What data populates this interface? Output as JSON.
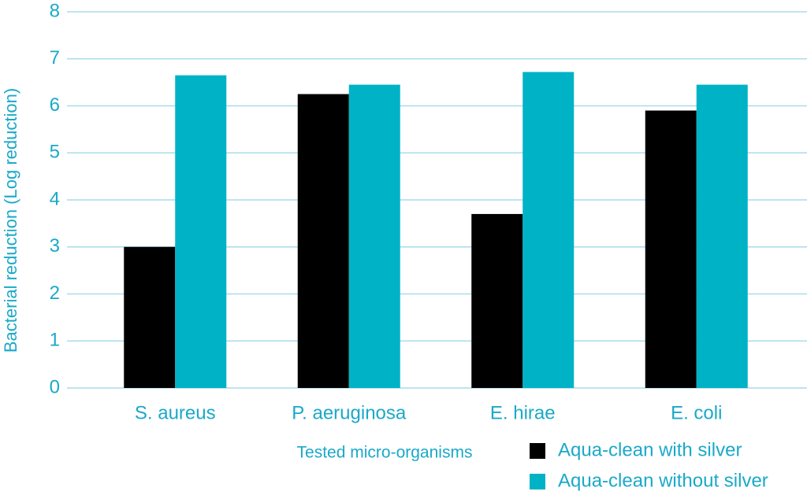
{
  "chart_data": {
    "type": "bar",
    "x_label": "Tested micro-organisms",
    "y_label": "Bacterial reduction (Log reduction)",
    "categories": [
      "S. aureus",
      "P. aeruginosa",
      "E. hirae",
      "E. coli"
    ],
    "series": [
      {
        "name": "Aqua-clean with silver",
        "color": "#000000",
        "values": [
          3.0,
          6.25,
          3.7,
          5.9
        ]
      },
      {
        "name": "Aqua-clean without silver",
        "color": "#00b2c6",
        "values": [
          6.65,
          6.45,
          6.72,
          6.45
        ]
      }
    ],
    "ylim": [
      0,
      8
    ],
    "yticks": [
      0,
      1,
      2,
      3,
      4,
      5,
      6,
      7,
      8
    ],
    "grid": true
  }
}
